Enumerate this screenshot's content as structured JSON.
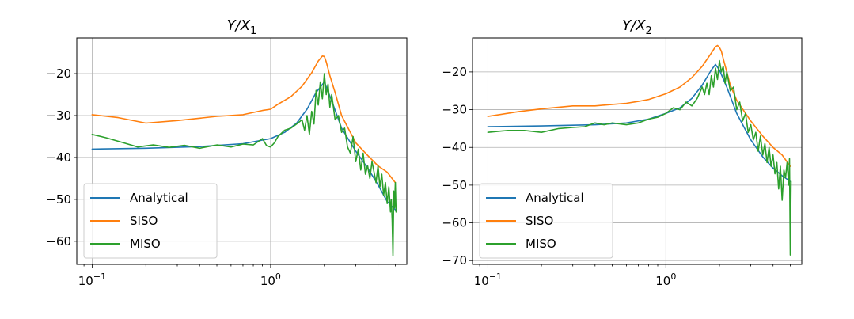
{
  "chart_data": [
    {
      "type": "line",
      "title": "Y/X1",
      "title_parts": {
        "base": "Y/X",
        "sub": "1"
      },
      "xscale": "log",
      "xlim": [
        0.082,
        5.8
      ],
      "ylim": [
        -65.5,
        -11.5
      ],
      "yticks": [
        -60,
        -50,
        -40,
        -30,
        -20
      ],
      "ytick_labels": [
        "−60",
        "−50",
        "−40",
        "−30",
        "−20"
      ],
      "xticks": [
        0.1,
        1
      ],
      "xtick_labels": [
        {
          "base": "10",
          "exp": "−1"
        },
        {
          "base": "10",
          "exp": "0"
        }
      ],
      "grid": true,
      "legend": {
        "position": "lower-left",
        "entries": [
          "Analytical",
          "SISO",
          "MISO"
        ]
      },
      "series": [
        {
          "name": "Analytical",
          "color": "#1f77b4",
          "x": [
            0.1,
            0.2,
            0.4,
            0.7,
            1.0,
            1.2,
            1.4,
            1.6,
            1.8,
            2.0,
            2.2,
            2.5,
            3.0,
            3.5,
            4.0,
            4.5,
            5.0
          ],
          "y": [
            -38,
            -37.8,
            -37.4,
            -36.7,
            -35.5,
            -34,
            -31.8,
            -28.5,
            -24.5,
            -22,
            -26.5,
            -33,
            -38.5,
            -42.5,
            -46.5,
            -50.5,
            -52.5
          ]
        },
        {
          "name": "SISO",
          "color": "#ff7f0e",
          "x": [
            0.1,
            0.14,
            0.2,
            0.3,
            0.5,
            0.7,
            0.9,
            1.0,
            1.1,
            1.3,
            1.5,
            1.7,
            1.85,
            1.95,
            2.0,
            2.05,
            2.15,
            2.3,
            2.5,
            3.0,
            3.5,
            4.0,
            4.5,
            5.0
          ],
          "y": [
            -29.8,
            -30.5,
            -31.8,
            -31.2,
            -30.2,
            -29.8,
            -28.8,
            -28.5,
            -27.3,
            -25.5,
            -23,
            -19.8,
            -17,
            -15.8,
            -15.9,
            -17.2,
            -20.5,
            -24.5,
            -30,
            -36.5,
            -39.5,
            -42,
            -43.5,
            -46
          ]
        },
        {
          "name": "MISO",
          "color": "#2ca02c",
          "x": [
            0.1,
            0.12,
            0.15,
            0.18,
            0.22,
            0.27,
            0.33,
            0.4,
            0.5,
            0.6,
            0.7,
            0.8,
            0.9,
            0.95,
            1.0,
            1.05,
            1.1,
            1.2,
            1.3,
            1.4,
            1.5,
            1.55,
            1.6,
            1.65,
            1.7,
            1.75,
            1.8,
            1.85,
            1.9,
            1.95,
            2.0,
            2.05,
            2.1,
            2.15,
            2.2,
            2.3,
            2.4,
            2.5,
            2.6,
            2.7,
            2.8,
            2.9,
            3.0,
            3.1,
            3.2,
            3.3,
            3.4,
            3.5,
            3.6,
            3.7,
            3.8,
            3.9,
            4.0,
            4.1,
            4.2,
            4.3,
            4.4,
            4.5,
            4.6,
            4.7,
            4.75,
            4.8,
            4.85,
            4.9,
            4.95,
            5.0,
            5.05
          ],
          "y": [
            -34.5,
            -35.3,
            -36.5,
            -37.5,
            -37,
            -37.6,
            -37.1,
            -37.8,
            -37,
            -37.5,
            -36.8,
            -37,
            -35.5,
            -37.2,
            -37.5,
            -36.5,
            -35,
            -33.5,
            -33,
            -32,
            -31,
            -33.5,
            -30,
            -34.5,
            -29,
            -32,
            -24,
            -27.5,
            -22,
            -26,
            -20,
            -25,
            -22.5,
            -28,
            -25,
            -31,
            -30,
            -34,
            -33,
            -37.5,
            -39,
            -35,
            -41,
            -38,
            -43,
            -39,
            -44,
            -42,
            -45,
            -41,
            -43.5,
            -46,
            -42,
            -47,
            -44,
            -49,
            -46,
            -51,
            -47,
            -53,
            -50,
            -55,
            -63.5,
            -48,
            -52,
            -46,
            -53
          ]
        }
      ]
    },
    {
      "type": "line",
      "title": "Y/X2",
      "title_parts": {
        "base": "Y/X",
        "sub": "2"
      },
      "xscale": "log",
      "xlim": [
        0.082,
        5.8
      ],
      "ylim": [
        -71,
        -11
      ],
      "yticks": [
        -70,
        -60,
        -50,
        -40,
        -30,
        -20
      ],
      "ytick_labels": [
        "−70",
        "−60",
        "−50",
        "−40",
        "−30",
        "−20"
      ],
      "xticks": [
        0.1,
        1
      ],
      "xtick_labels": [
        {
          "base": "10",
          "exp": "−1"
        },
        {
          "base": "10",
          "exp": "0"
        }
      ],
      "grid": true,
      "legend": {
        "position": "lower-left",
        "entries": [
          "Analytical",
          "SISO",
          "MISO"
        ]
      },
      "series": [
        {
          "name": "Analytical",
          "color": "#1f77b4",
          "x": [
            0.1,
            0.2,
            0.4,
            0.6,
            0.8,
            1.0,
            1.2,
            1.4,
            1.6,
            1.8,
            1.9,
            2.0,
            2.2,
            2.5,
            3.0,
            3.5,
            4.0,
            4.5,
            5.0
          ],
          "y": [
            -34.5,
            -34.3,
            -34,
            -33.5,
            -32.5,
            -31,
            -29.5,
            -27,
            -23.5,
            -19.5,
            -18,
            -19.5,
            -24,
            -31,
            -38,
            -42.5,
            -45.5,
            -47.5,
            -49
          ]
        },
        {
          "name": "SISO",
          "color": "#ff7f0e",
          "x": [
            0.1,
            0.15,
            0.2,
            0.3,
            0.4,
            0.5,
            0.6,
            0.7,
            0.8,
            0.9,
            1.0,
            1.2,
            1.4,
            1.6,
            1.8,
            1.9,
            1.95,
            2.0,
            2.05,
            2.1,
            2.2,
            2.3,
            2.5,
            3.0,
            3.5,
            4.0,
            4.5,
            5.0
          ],
          "y": [
            -31.8,
            -30.5,
            -29.8,
            -29,
            -29,
            -28.6,
            -28.3,
            -27.8,
            -27.3,
            -26.5,
            -25.8,
            -24,
            -21.5,
            -18.5,
            -15,
            -13.3,
            -13,
            -13.5,
            -14.5,
            -16.5,
            -20,
            -23.5,
            -27.5,
            -33,
            -37,
            -40,
            -42,
            -45
          ]
        },
        {
          "name": "MISO",
          "color": "#2ca02c",
          "x": [
            0.1,
            0.13,
            0.16,
            0.2,
            0.25,
            0.3,
            0.35,
            0.4,
            0.45,
            0.5,
            0.6,
            0.7,
            0.8,
            0.9,
            1.0,
            1.1,
            1.2,
            1.3,
            1.4,
            1.5,
            1.6,
            1.65,
            1.7,
            1.75,
            1.8,
            1.85,
            1.9,
            1.95,
            2.0,
            2.05,
            2.1,
            2.15,
            2.2,
            2.3,
            2.4,
            2.5,
            2.6,
            2.7,
            2.8,
            2.9,
            3.0,
            3.1,
            3.2,
            3.3,
            3.4,
            3.5,
            3.6,
            3.7,
            3.8,
            3.9,
            4.0,
            4.1,
            4.2,
            4.3,
            4.4,
            4.5,
            4.6,
            4.7,
            4.8,
            4.9,
            4.95,
            5.0,
            5.05
          ],
          "y": [
            -36,
            -35.5,
            -35.5,
            -36,
            -35,
            -34.7,
            -34.5,
            -33.5,
            -34,
            -33.5,
            -34,
            -33.5,
            -32.5,
            -32,
            -31,
            -29.5,
            -30,
            -28,
            -29,
            -27,
            -24,
            -26,
            -23,
            -26,
            -21,
            -24,
            -19,
            -22,
            -17,
            -20,
            -18.5,
            -23,
            -20,
            -25,
            -24,
            -30,
            -28,
            -33,
            -31,
            -36,
            -34,
            -38,
            -36,
            -41,
            -37,
            -42,
            -39,
            -44,
            -40,
            -45,
            -42,
            -47,
            -44,
            -51,
            -45,
            -54,
            -46,
            -48,
            -44,
            -50,
            -43,
            -68.5,
            -49
          ]
        }
      ]
    }
  ]
}
